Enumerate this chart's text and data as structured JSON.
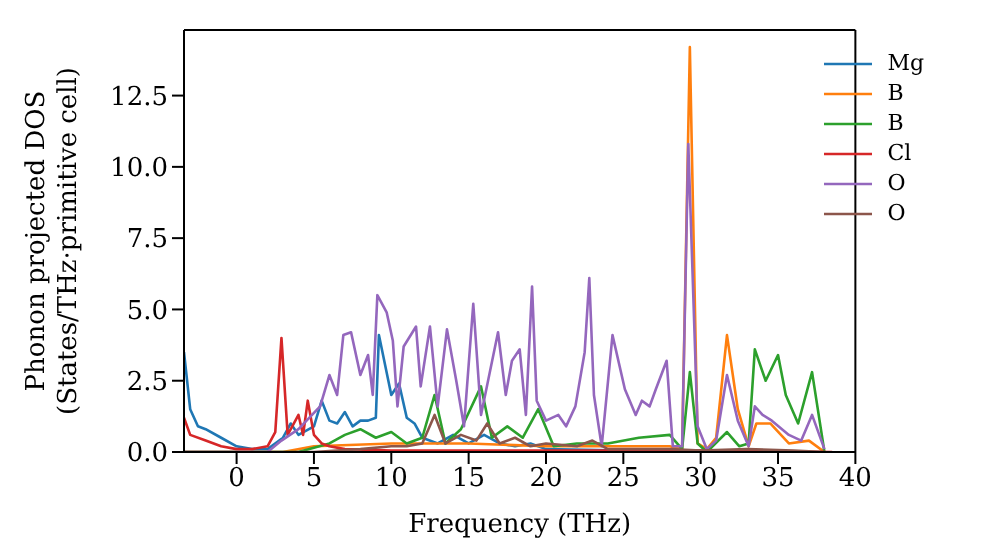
{
  "chart_data": {
    "type": "line",
    "xlabel": "Frequency (THz)",
    "ylabel": "Phonon projected DOS\n(States/THz·primitive cell)",
    "xlim": [
      -3.4,
      40
    ],
    "xticks": [
      0,
      5,
      10,
      15,
      20,
      25,
      30,
      35,
      40
    ],
    "ylim": [
      0,
      14.8
    ],
    "yticks": [
      {
        "value": 0,
        "label": "0.0"
      },
      {
        "value": 2.5,
        "label": "2.5"
      },
      {
        "value": 5,
        "label": "5.0"
      },
      {
        "value": 7.5,
        "label": "7.5"
      },
      {
        "value": 10,
        "label": "10.0"
      },
      {
        "value": 12.5,
        "label": "12.5"
      }
    ],
    "legend": "top right",
    "marker": "none",
    "line_style": "solid",
    "series": [
      {
        "name": "Mg",
        "color": "#1f77b4",
        "x": [
          -3.4,
          -3,
          -2.5,
          -2,
          -1,
          0,
          1,
          2,
          3,
          3.5,
          4,
          5,
          5.5,
          6,
          6.5,
          7,
          7.5,
          8,
          8.5,
          9,
          9.2,
          10,
          10.5,
          11,
          11.5,
          12,
          13,
          14,
          15,
          16,
          17,
          18,
          19,
          20,
          25,
          30
        ],
        "values": [
          3.5,
          1.5,
          0.9,
          0.8,
          0.5,
          0.2,
          0.1,
          0.1,
          0.5,
          1,
          0.6,
          0.9,
          1.8,
          1.1,
          1,
          1.4,
          0.9,
          1.1,
          1.1,
          1.2,
          4.1,
          2,
          2.4,
          1.2,
          1,
          0.5,
          0.3,
          0.6,
          0.3,
          0.6,
          0.3,
          0.2,
          0.3,
          0.1,
          0.05,
          0.05
        ]
      },
      {
        "name": "B",
        "color": "#ff7f0e",
        "x": [
          -3.4,
          3,
          5,
          10,
          15,
          20,
          25,
          28,
          28.8,
          29.3,
          29.8,
          30.4,
          31,
          31.7,
          32.4,
          33.1,
          33.6,
          34.5,
          35.7,
          37,
          38
        ],
        "values": [
          0,
          0,
          0.2,
          0.3,
          0.3,
          0.2,
          0.2,
          0.2,
          0.1,
          14.2,
          0.3,
          0.1,
          0.5,
          4.1,
          1.5,
          0.2,
          1,
          1,
          0.3,
          0.4,
          0
        ]
      },
      {
        "name": "B",
        "color": "#2ca02c",
        "x": [
          -3.4,
          4,
          6,
          7,
          8,
          9,
          10,
          11,
          12,
          12.8,
          13.5,
          14.5,
          15.8,
          16.5,
          17.5,
          18.5,
          19.5,
          20.5,
          22,
          24,
          26,
          28,
          28.8,
          29.3,
          29.8,
          30.4,
          31.7,
          32.5,
          33.1,
          33.5,
          34.2,
          35,
          35.5,
          36.3,
          37.2,
          38
        ],
        "values": [
          0,
          0,
          0.3,
          0.6,
          0.8,
          0.5,
          0.7,
          0.3,
          0.5,
          2,
          0.3,
          0.8,
          2.3,
          0.5,
          0.9,
          0.5,
          1.5,
          0.2,
          0.3,
          0.3,
          0.5,
          0.6,
          0.1,
          2.8,
          0.3,
          0,
          0.7,
          0.2,
          0.3,
          3.6,
          2.5,
          3.4,
          2,
          1,
          2.8,
          0
        ]
      },
      {
        "name": "Cl",
        "color": "#d62728",
        "x": [
          -3.4,
          -3,
          -2,
          -1,
          0,
          1,
          2,
          2.5,
          2.9,
          3.3,
          4,
          4.3,
          4.6,
          5,
          5.5,
          6,
          7,
          10,
          20,
          30,
          38.5
        ],
        "values": [
          1.2,
          0.6,
          0.4,
          0.2,
          0.1,
          0.1,
          0.2,
          0.7,
          4,
          0.6,
          1.3,
          0.6,
          1.8,
          0.6,
          0.3,
          0.2,
          0.1,
          0.05,
          0.05,
          0.05,
          0
        ]
      },
      {
        "name": "O",
        "color": "#9467bd",
        "x": [
          -3.4,
          2,
          2.9,
          4,
          5.4,
          6,
          6.5,
          6.9,
          7.4,
          8,
          8.5,
          8.8,
          9.1,
          9.7,
          10.1,
          10.4,
          10.8,
          11.6,
          11.9,
          12.5,
          13,
          13.6,
          14.2,
          14.7,
          15.3,
          15.8,
          16.9,
          17.4,
          17.8,
          18.3,
          18.7,
          19.1,
          19.4,
          20,
          20.8,
          21.3,
          21.9,
          22.5,
          22.8,
          23.1,
          23.6,
          24.3,
          25.1,
          25.8,
          26.2,
          26.7,
          27.1,
          27.8,
          28.2,
          28.8,
          29.2,
          29.8,
          30.4,
          31,
          31.7,
          32.4,
          33.1,
          33.5,
          34,
          34.6,
          35.7,
          36.5,
          37.2,
          38
        ],
        "values": [
          0,
          0,
          0.4,
          0.8,
          1.6,
          2.7,
          2,
          4.1,
          4.2,
          2.7,
          3.4,
          2,
          5.5,
          4.9,
          3.9,
          1.6,
          3.7,
          4.4,
          2.3,
          4.4,
          1.6,
          4.3,
          2.5,
          0.9,
          5.2,
          1.3,
          4.2,
          2,
          3.2,
          3.6,
          1.3,
          5.8,
          1.8,
          1.1,
          1.3,
          0.9,
          1.6,
          3.5,
          6.1,
          2,
          0.2,
          4.1,
          2.2,
          1.3,
          1.8,
          1.6,
          2.2,
          3.2,
          0.2,
          0.2,
          10.8,
          0.9,
          0.1,
          0.4,
          2.7,
          1.1,
          0.2,
          1.6,
          1.3,
          1.1,
          0.6,
          0.4,
          1.3,
          0.1
        ]
      },
      {
        "name": "O",
        "color": "#8c564b",
        "x": [
          -3.4,
          5,
          8,
          10,
          11,
          12,
          12.8,
          13.5,
          14.5,
          15.5,
          16.2,
          17,
          18,
          19,
          20,
          22,
          23,
          24,
          28,
          30,
          33,
          36,
          38
        ],
        "values": [
          0,
          0,
          0.1,
          0.2,
          0.2,
          0.3,
          1.3,
          0.3,
          0.6,
          0.4,
          1,
          0.3,
          0.5,
          0.2,
          0.3,
          0.2,
          0.4,
          0.1,
          0.1,
          0.05,
          0.1,
          0.05,
          0
        ]
      }
    ]
  }
}
